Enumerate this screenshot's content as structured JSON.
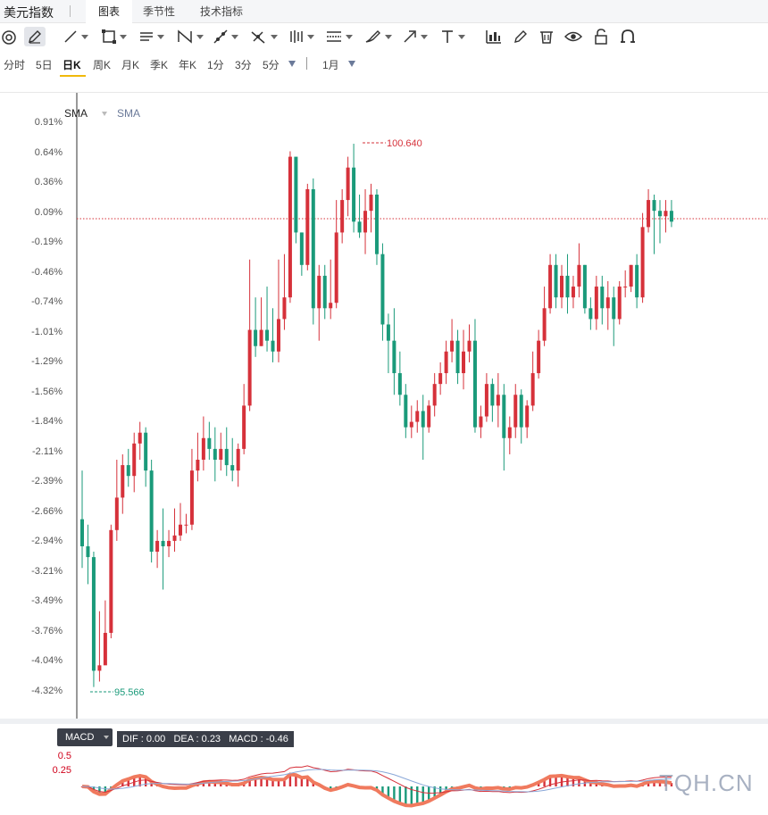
{
  "app": {
    "title": "美元指数",
    "tabs": [
      {
        "label": "图表",
        "active": true
      },
      {
        "label": "季节性",
        "active": false
      },
      {
        "label": "技术指标",
        "active": false
      }
    ]
  },
  "toolbar": {
    "tools": [
      "magnet-icon",
      "pen-icon",
      "line-icon",
      "rectangle-icon",
      "parallel-channel-icon",
      "pattern-icon",
      "ray-icon",
      "fork-icon",
      "bars-icon",
      "fib-icon",
      "brush-icon",
      "arrow-icon",
      "text-icon",
      "indicator-icon",
      "edit-icon",
      "trash-icon",
      "eye-icon",
      "lock-icon",
      "magnet-u-icon"
    ]
  },
  "periods": {
    "items": [
      "分时",
      "5日",
      "日K",
      "周K",
      "月K",
      "季K",
      "年K",
      "1分",
      "3分",
      "5分"
    ],
    "active": "日K",
    "range": "1月"
  },
  "chart": {
    "sma_labels": [
      "SMA",
      "SMA"
    ],
    "y_ticks": [
      "0.91%",
      "0.64%",
      "0.36%",
      "0.09%",
      "-0.19%",
      "-0.46%",
      "-0.74%",
      "-1.01%",
      "-1.29%",
      "-1.56%",
      "-1.84%",
      "-2.11%",
      "-2.39%",
      "-2.66%",
      "-2.94%",
      "-3.21%",
      "-3.49%",
      "-3.76%",
      "-4.04%",
      "-4.32%"
    ],
    "high_label": "100.640",
    "low_label": "95.566",
    "colors": {
      "up": "#d6313a",
      "down": "#1a9a7a",
      "ref": "#d6313a"
    }
  },
  "chart_data": {
    "type": "candlestick",
    "y_axis_unit": "% change",
    "ylim": [
      -4.55,
      1.05
    ],
    "high_price": 100.64,
    "low_price": 95.566,
    "candles": [
      [
        -2.75,
        -3.0,
        -2.3,
        -3.2
      ],
      [
        -3.0,
        -3.1,
        -2.8,
        -3.35
      ],
      [
        -3.1,
        -4.15,
        -3.05,
        -4.3
      ],
      [
        -4.15,
        -4.1,
        -3.6,
        -4.25
      ],
      [
        -4.1,
        -3.8,
        -3.5,
        -3.95
      ],
      [
        -3.8,
        -2.85,
        -2.8,
        -3.85
      ],
      [
        -2.85,
        -2.55,
        -2.2,
        -2.95
      ],
      [
        -2.55,
        -2.25,
        -2.15,
        -2.7
      ],
      [
        -2.25,
        -2.35,
        -2.1,
        -2.45
      ],
      [
        -2.35,
        -2.05,
        -1.95,
        -2.5
      ],
      [
        -2.05,
        -1.95,
        -1.85,
        -2.2
      ],
      [
        -1.95,
        -2.3,
        -1.9,
        -2.45
      ],
      [
        -2.3,
        -3.05,
        -2.2,
        -3.15
      ],
      [
        -3.05,
        -2.95,
        -2.85,
        -3.2
      ],
      [
        -2.95,
        -3.0,
        -2.65,
        -3.4
      ],
      [
        -3.0,
        -2.95,
        -2.85,
        -3.1
      ],
      [
        -2.95,
        -2.9,
        -2.65,
        -3.05
      ],
      [
        -2.9,
        -2.8,
        -2.6,
        -2.95
      ],
      [
        -2.8,
        -2.8,
        -2.7,
        -2.88
      ],
      [
        -2.8,
        -2.3,
        -2.1,
        -2.85
      ],
      [
        -2.3,
        -2.2,
        -1.95,
        -2.4
      ],
      [
        -2.2,
        -2.0,
        -1.8,
        -2.3
      ],
      [
        -2.0,
        -2.1,
        -1.85,
        -2.2
      ],
      [
        -2.1,
        -2.2,
        -1.9,
        -2.4
      ],
      [
        -2.2,
        -2.1,
        -1.95,
        -2.3
      ],
      [
        -2.1,
        -2.25,
        -1.9,
        -2.35
      ],
      [
        -2.25,
        -2.3,
        -2.0,
        -2.4
      ],
      [
        -2.3,
        -2.1,
        -2.05,
        -2.45
      ],
      [
        -2.1,
        -1.7,
        -1.5,
        -2.15
      ],
      [
        -1.7,
        -1.0,
        -0.35,
        -1.75
      ],
      [
        -1.0,
        -1.15,
        -0.7,
        -1.25
      ],
      [
        -1.15,
        -1.0,
        -0.7,
        -1.15
      ],
      [
        -1.0,
        -1.1,
        -0.6,
        -1.2
      ],
      [
        -1.1,
        -1.2,
        -0.8,
        -1.3
      ],
      [
        -1.2,
        -0.9,
        -0.35,
        -1.3
      ],
      [
        -0.9,
        -0.7,
        -0.3,
        -1.0
      ],
      [
        -0.7,
        0.6,
        0.65,
        -0.75
      ],
      [
        0.6,
        -0.1,
        0.55,
        -0.2
      ],
      [
        -0.1,
        -0.4,
        -0.1,
        -0.5
      ],
      [
        -0.4,
        0.3,
        0.35,
        -0.45
      ],
      [
        0.3,
        -0.8,
        0.4,
        -0.95
      ],
      [
        -0.8,
        -0.5,
        -0.4,
        -1.1
      ],
      [
        -0.5,
        -0.8,
        -0.4,
        -0.9
      ],
      [
        -0.8,
        -0.75,
        -0.35,
        -0.9
      ],
      [
        -0.75,
        -0.1,
        0.2,
        -0.8
      ],
      [
        -0.1,
        0.2,
        0.3,
        -0.2
      ],
      [
        0.2,
        0.5,
        0.6,
        0.05
      ],
      [
        0.5,
        0.0,
        0.72,
        -0.1
      ],
      [
        0.0,
        -0.1,
        0.25,
        -0.15
      ],
      [
        -0.1,
        0.1,
        0.3,
        -0.3
      ],
      [
        0.1,
        0.25,
        0.35,
        -0.1
      ],
      [
        0.25,
        -0.3,
        0.3,
        -0.4
      ],
      [
        -0.3,
        -0.95,
        -0.2,
        -1.1
      ],
      [
        -0.95,
        -1.1,
        -0.85,
        -1.4
      ],
      [
        -1.1,
        -1.4,
        -0.8,
        -1.6
      ],
      [
        -1.4,
        -1.6,
        -1.2,
        -1.7
      ],
      [
        -1.6,
        -1.9,
        -1.5,
        -2.0
      ],
      [
        -1.9,
        -1.85,
        -1.7,
        -2.0
      ],
      [
        -1.85,
        -1.75,
        -1.65,
        -1.95
      ],
      [
        -1.75,
        -1.9,
        -1.6,
        -2.2
      ],
      [
        -1.9,
        -1.7,
        -1.65,
        -1.95
      ],
      [
        -1.7,
        -1.5,
        -1.4,
        -1.8
      ],
      [
        -1.5,
        -1.4,
        -1.3,
        -1.6
      ],
      [
        -1.4,
        -1.2,
        -1.1,
        -1.5
      ],
      [
        -1.2,
        -1.1,
        -0.9,
        -1.3
      ],
      [
        -1.1,
        -1.4,
        -1.0,
        -1.5
      ],
      [
        -1.4,
        -1.2,
        -1.0,
        -1.55
      ],
      [
        -1.2,
        -1.1,
        -0.95,
        -1.3
      ],
      [
        -1.1,
        -1.9,
        -0.9,
        -1.95
      ],
      [
        -1.9,
        -1.8,
        -1.7,
        -2.0
      ],
      [
        -1.8,
        -1.5,
        -1.4,
        -1.85
      ],
      [
        -1.5,
        -1.7,
        -1.45,
        -1.85
      ],
      [
        -1.7,
        -1.6,
        -1.4,
        -1.9
      ],
      [
        -1.6,
        -2.0,
        -1.5,
        -2.3
      ],
      [
        -2.0,
        -1.9,
        -1.8,
        -2.15
      ],
      [
        -1.9,
        -1.6,
        -1.5,
        -2.0
      ],
      [
        -1.6,
        -1.9,
        -1.55,
        -2.05
      ],
      [
        -1.9,
        -1.7,
        -1.65,
        -2.0
      ],
      [
        -1.7,
        -1.4,
        -1.2,
        -1.75
      ],
      [
        -1.4,
        -1.1,
        -1.0,
        -1.45
      ],
      [
        -1.1,
        -0.8,
        -0.6,
        -1.15
      ],
      [
        -0.8,
        -0.4,
        -0.3,
        -0.85
      ],
      [
        -0.4,
        -0.7,
        -0.3,
        -0.8
      ],
      [
        -0.7,
        -0.5,
        -0.4,
        -0.8
      ],
      [
        -0.5,
        -0.7,
        -0.3,
        -0.85
      ],
      [
        -0.7,
        -0.6,
        -0.5,
        -0.8
      ],
      [
        -0.6,
        -0.4,
        -0.2,
        -0.7
      ],
      [
        -0.4,
        -0.8,
        -0.4,
        -0.85
      ],
      [
        -0.8,
        -0.9,
        -0.7,
        -1.0
      ],
      [
        -0.9,
        -0.6,
        -0.5,
        -1.0
      ],
      [
        -0.6,
        -0.8,
        -0.5,
        -0.95
      ],
      [
        -0.8,
        -0.7,
        -0.55,
        -1.0
      ],
      [
        -0.7,
        -0.9,
        -0.6,
        -1.15
      ],
      [
        -0.9,
        -0.6,
        -0.55,
        -0.95
      ],
      [
        -0.6,
        -0.6,
        -0.45,
        -0.7
      ],
      [
        -0.6,
        -0.4,
        -0.4,
        -0.65
      ],
      [
        -0.4,
        -0.7,
        -0.3,
        -0.8
      ],
      [
        -0.7,
        -0.05,
        0.08,
        -0.75
      ],
      [
        -0.05,
        0.2,
        0.3,
        -0.1
      ],
      [
        0.2,
        0.1,
        0.25,
        -0.3
      ],
      [
        0.1,
        0.05,
        0.2,
        -0.2
      ],
      [
        0.05,
        0.1,
        0.2,
        -0.1
      ],
      [
        0.1,
        0.0,
        0.2,
        -0.05
      ]
    ],
    "macd": {
      "dif": 0.0,
      "dea": 0.23,
      "macd": -0.46,
      "y_ticks": [
        "0.5",
        "0.25"
      ]
    }
  },
  "macd_panel": {
    "button_label": "MACD",
    "values_text": "DIF : 0.00   DEA : 0.23   MACD : -0.46"
  },
  "watermark": "TQH.CN"
}
